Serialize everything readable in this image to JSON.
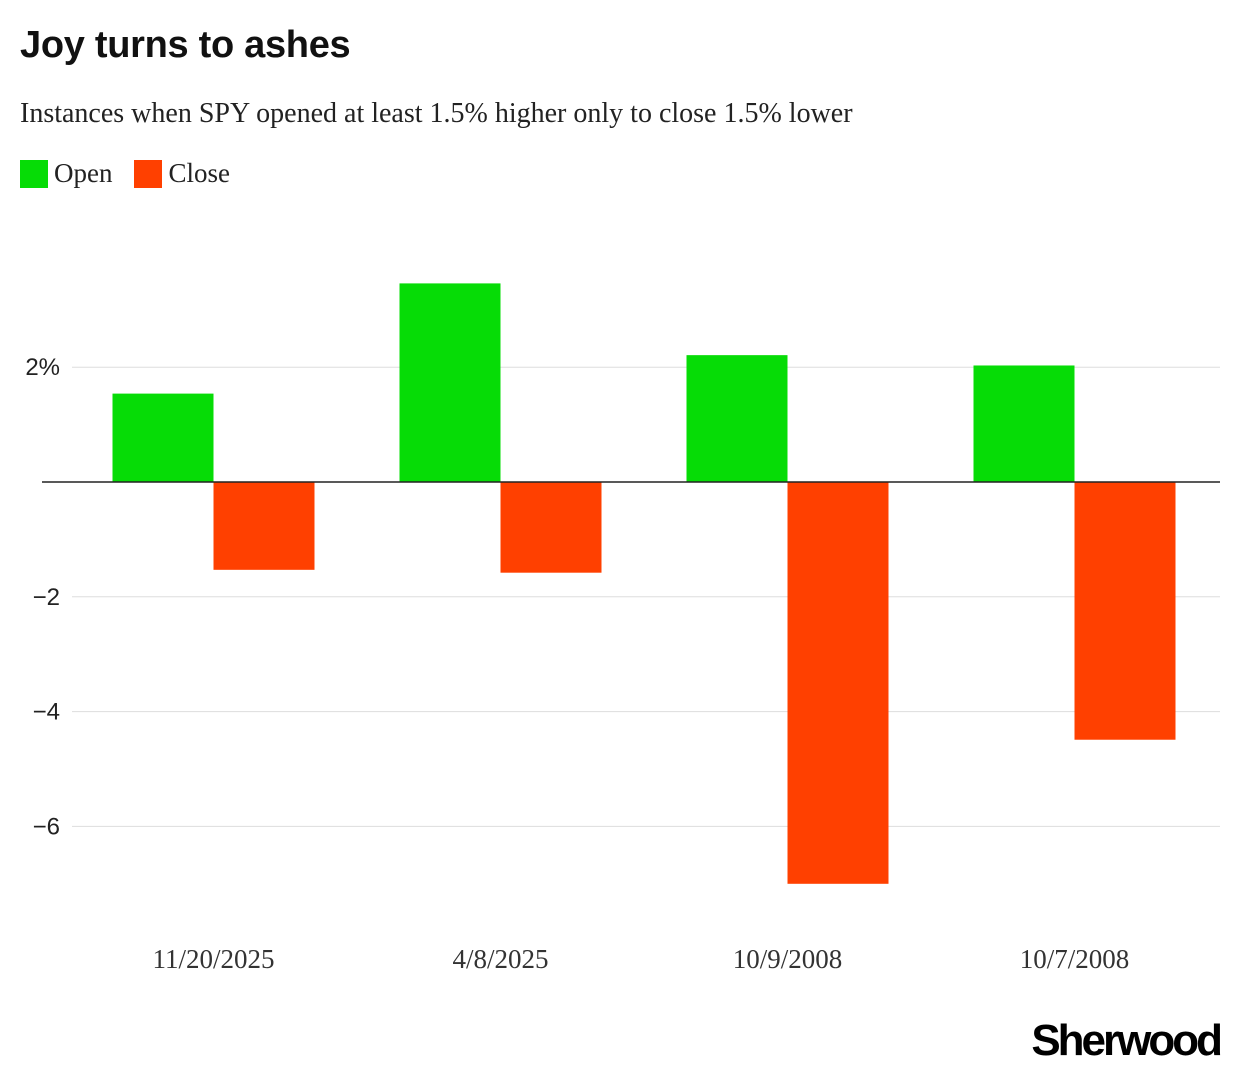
{
  "colors": {
    "open": "#06DC06",
    "close": "#FF4000",
    "grid": "#DDDDDD",
    "axis": "#222222"
  },
  "legend": {
    "open_label": "Open",
    "close_label": "Close"
  },
  "brand": "Sherwood",
  "chart_data": {
    "type": "bar",
    "title": "Joy turns to ashes",
    "subtitle": "Instances when SPY opened at least 1.5% higher only to close 1.5% lower",
    "categories": [
      "11/20/2025",
      "4/8/2025",
      "10/9/2008",
      "10/7/2008"
    ],
    "series": [
      {
        "name": "Open",
        "values": [
          1.54,
          3.46,
          2.21,
          2.03
        ]
      },
      {
        "name": "Close",
        "values": [
          -1.53,
          -1.58,
          -7.0,
          -4.49
        ]
      }
    ],
    "yticks": [
      2,
      -2,
      -4,
      -6
    ],
    "ytick_labels": [
      "2%",
      "−2",
      "−4",
      "−6"
    ],
    "ylim": [
      -7.5,
      4.5
    ],
    "xlabel": "",
    "ylabel": "",
    "grid": true,
    "legend_position": "top-left"
  }
}
